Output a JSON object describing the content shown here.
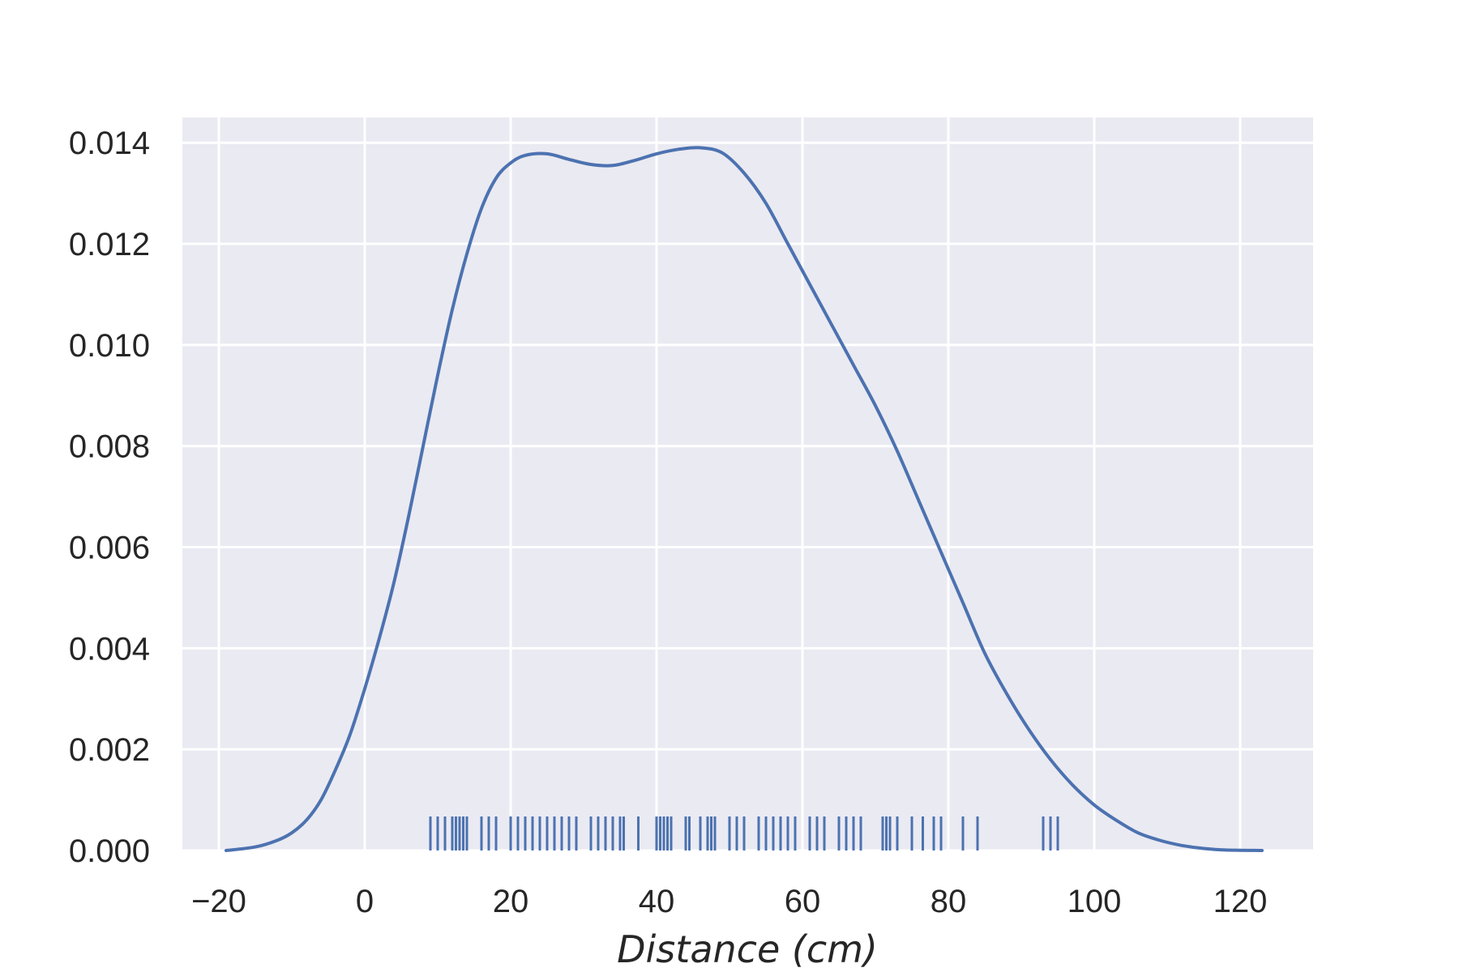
{
  "chart_data": {
    "type": "line",
    "xlabel": "Distance (cm)",
    "ylabel": "",
    "title": "",
    "xlim": [
      -25,
      130
    ],
    "ylim": [
      0,
      0.0145
    ],
    "grid": true,
    "x_ticks": [
      -20,
      0,
      20,
      40,
      60,
      80,
      100,
      120
    ],
    "x_tick_labels": [
      "−20",
      "0",
      "20",
      "40",
      "60",
      "80",
      "100",
      "120"
    ],
    "y_ticks": [
      0,
      0.002,
      0.004,
      0.006,
      0.008,
      0.01,
      0.012,
      0.014
    ],
    "y_tick_labels": [
      "0.000",
      "0.002",
      "0.004",
      "0.006",
      "0.008",
      "0.010",
      "0.012",
      "0.014"
    ],
    "series": [
      {
        "kind": "kde",
        "x": [
          -19,
          -15,
          -12,
          -10,
          -8,
          -6,
          -4,
          -2,
          0,
          2,
          4,
          6,
          8,
          10,
          12,
          14,
          16,
          18,
          20,
          22,
          25,
          28,
          31,
          34,
          37,
          40,
          43,
          46,
          49,
          52,
          55,
          58,
          61,
          64,
          67,
          70,
          73,
          76,
          79,
          82,
          85,
          88,
          91,
          94,
          97,
          100,
          103,
          106,
          109,
          112,
          115,
          118,
          123
        ],
        "y": [
          0.0,
          7e-05,
          0.0002,
          0.00035,
          0.0006,
          0.001,
          0.0016,
          0.0023,
          0.0032,
          0.0042,
          0.0053,
          0.0066,
          0.008,
          0.0094,
          0.0107,
          0.0118,
          0.0127,
          0.0133,
          0.0136,
          0.01375,
          0.01378,
          0.01367,
          0.01357,
          0.01355,
          0.01365,
          0.01378,
          0.01387,
          0.0139,
          0.0138,
          0.0134,
          0.0128,
          0.012,
          0.0112,
          0.0104,
          0.0096,
          0.0088,
          0.0079,
          0.0069,
          0.0059,
          0.0049,
          0.0039,
          0.0031,
          0.0024,
          0.0018,
          0.0013,
          0.0009,
          0.0006,
          0.00035,
          0.0002,
          0.0001,
          4e-05,
          1e-05,
          0.0
        ]
      },
      {
        "kind": "rug",
        "values": [
          9,
          10,
          11,
          12,
          12.5,
          13,
          13.5,
          14,
          16,
          17,
          18,
          20,
          21,
          22,
          23,
          24,
          25,
          26,
          27,
          28,
          29,
          31,
          32,
          33,
          34,
          35,
          35.5,
          37.5,
          40,
          40.5,
          41,
          41.5,
          42,
          44,
          44.5,
          46,
          47,
          47.5,
          48,
          50,
          51,
          52,
          54,
          55,
          56,
          57,
          58,
          59,
          61,
          62,
          63,
          65,
          66,
          67,
          68,
          71,
          71.5,
          72,
          73,
          75,
          76.5,
          78,
          79,
          82,
          84,
          93,
          94,
          95
        ]
      }
    ]
  }
}
